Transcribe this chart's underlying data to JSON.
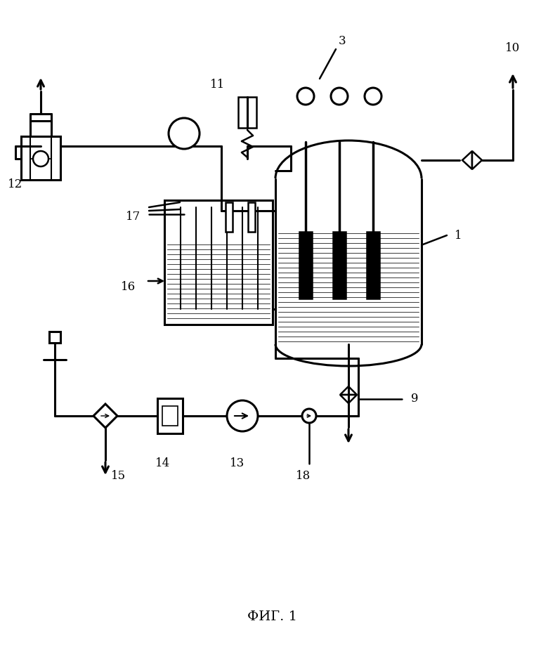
{
  "bg": "#ffffff",
  "lc": "#000000",
  "figsize": [
    7.8,
    9.21
  ],
  "dpi": 100
}
